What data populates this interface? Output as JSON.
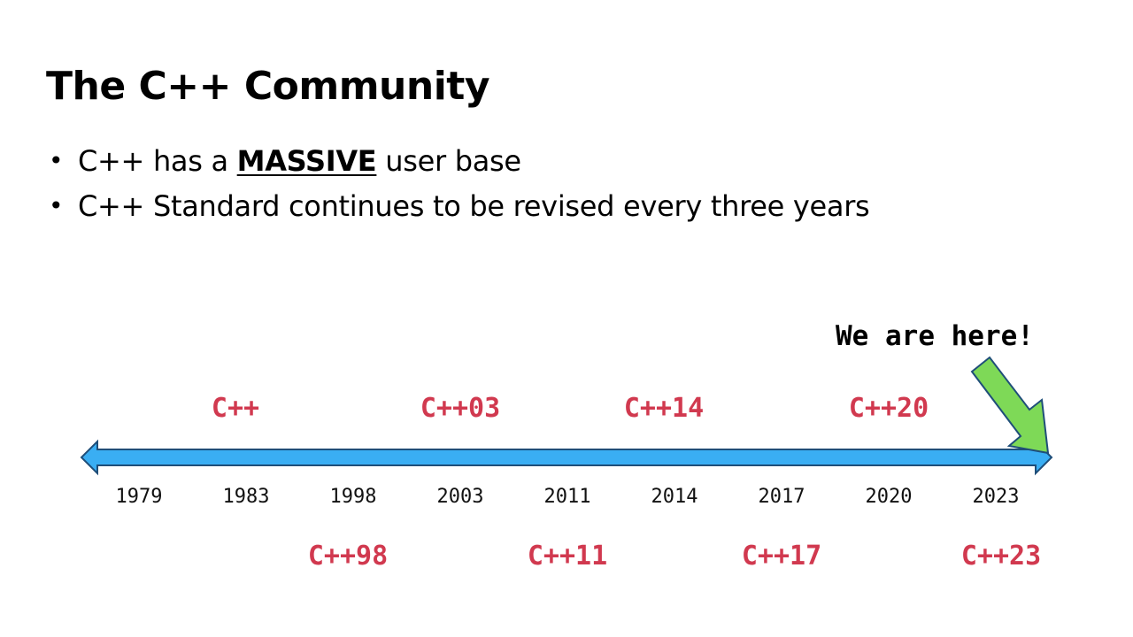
{
  "slide": {
    "title": "The C++ Community",
    "bullets": [
      {
        "before": "C++ has a ",
        "emphasis": "MASSIVE",
        "after": " user base"
      },
      {
        "text": "C++ Standard continues to be revised every three years"
      }
    ]
  },
  "timeline": {
    "callout": "We are here!",
    "years": [
      "1979",
      "1983",
      "1998",
      "2003",
      "2011",
      "2014",
      "2017",
      "2020",
      "2023"
    ],
    "versions_above": [
      {
        "year": "1983",
        "label": "C++"
      },
      {
        "year": "2003",
        "label": "C++03"
      },
      {
        "year": "2014",
        "label": "C++14"
      },
      {
        "year": "2020",
        "label": "C++20"
      }
    ],
    "versions_below": [
      {
        "year": "1998",
        "label": "C++98"
      },
      {
        "year": "2011",
        "label": "C++11"
      },
      {
        "year": "2017",
        "label": "C++17"
      },
      {
        "year": "2023",
        "label": "C++23"
      }
    ],
    "colors": {
      "arrow_fill": "#3aaef3",
      "arrow_stroke": "#1f4e79",
      "pointer_fill": "#7ed957",
      "version_text": "#d1394f"
    },
    "icons": {
      "timeline": "double-arrow-icon",
      "pointer": "down-arrow-icon"
    }
  }
}
